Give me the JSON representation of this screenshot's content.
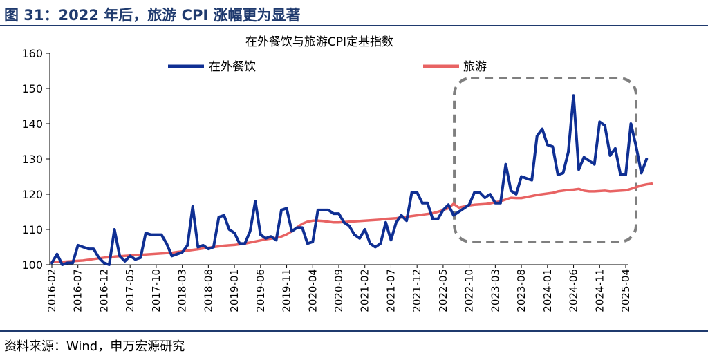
{
  "figure": {
    "title": "图 31：2022 年后，旅游 CPI 涨幅更为显著",
    "source": "资料来源：Wind，申万宏源研究"
  },
  "chart_data": {
    "type": "line",
    "title": "在外餐饮与旅游CPI定基指数",
    "xlabel": "",
    "ylabel": "",
    "ylim": [
      100,
      160
    ],
    "yticks": [
      100,
      110,
      120,
      130,
      140,
      150,
      160
    ],
    "xtick_labels": [
      "2016-02",
      "2016-07",
      "2016-12",
      "2017-05",
      "2017-10",
      "2018-03",
      "2018-08",
      "2019-01",
      "2019-06",
      "2019-11",
      "2020-04",
      "2020-09",
      "2021-02",
      "2021-07",
      "2021-12",
      "2022-05",
      "2022-10",
      "2023-03",
      "2023-08",
      "2024-01",
      "2024-06",
      "2024-11",
      "2025-04"
    ],
    "start_month": "2016-02",
    "end_month": "2025-04",
    "grid": false,
    "legend": "top",
    "highlight_box": {
      "from": "2022-09",
      "to": "2025-04",
      "style": "dashed rounded"
    },
    "series": [
      {
        "name": "在外餐饮",
        "color": "#0f2f93",
        "values": [
          100.5,
          103.0,
          100.0,
          100.5,
          100.5,
          105.5,
          105.0,
          104.5,
          104.5,
          102.0,
          100.5,
          100.0,
          110.0,
          102.5,
          101.0,
          102.5,
          101.5,
          102.0,
          109.0,
          108.5,
          108.5,
          108.5,
          106.0,
          102.5,
          103.0,
          103.5,
          105.5,
          116.5,
          105.0,
          105.5,
          104.5,
          105.0,
          113.5,
          114.0,
          110.0,
          109.0,
          106.0,
          106.0,
          109.5,
          118.0,
          108.5,
          107.5,
          108.0,
          107.0,
          115.5,
          116.0,
          109.5,
          110.5,
          110.5,
          106.0,
          106.5,
          115.5,
          115.5,
          115.5,
          114.5,
          114.5,
          112.0,
          111.0,
          108.5,
          107.5,
          110.0,
          106.0,
          105.0,
          106.0,
          112.0,
          107.0,
          112.0,
          114.0,
          112.5,
          120.5,
          120.5,
          117.5,
          117.5,
          113.0,
          113.0,
          115.5,
          117.0,
          114.0,
          115.0,
          116.0,
          117.0,
          120.5,
          120.5,
          119.0,
          120.0,
          117.5,
          117.5,
          128.5,
          121.0,
          120.0,
          125.0,
          124.5,
          124.0,
          136.5,
          138.5,
          134.0,
          133.5,
          125.5,
          126.0,
          132.0,
          148.0,
          127.0,
          130.5,
          129.5,
          128.5,
          140.5,
          139.5,
          131.0,
          133.0,
          125.5,
          125.5,
          140.0,
          133.5,
          126.0,
          130.0
        ]
      },
      {
        "name": "旅游",
        "color": "#e86363",
        "values": [
          100.8,
          100.8,
          100.8,
          100.9,
          101.0,
          101.1,
          101.2,
          101.4,
          101.6,
          101.8,
          102.0,
          102.1,
          102.3,
          102.4,
          102.5,
          102.6,
          102.7,
          102.8,
          102.9,
          103.0,
          103.1,
          103.2,
          103.3,
          103.4,
          103.6,
          103.8,
          104.0,
          104.2,
          104.4,
          104.6,
          104.8,
          105.0,
          105.2,
          105.4,
          105.5,
          105.6,
          105.8,
          106.0,
          106.3,
          106.6,
          106.9,
          107.2,
          107.4,
          107.6,
          108.0,
          108.6,
          109.5,
          110.6,
          111.6,
          112.2,
          112.5,
          112.5,
          112.4,
          112.2,
          112.0,
          112.0,
          112.1,
          112.2,
          112.3,
          112.4,
          112.5,
          112.6,
          112.7,
          112.8,
          113.0,
          113.1,
          113.2,
          113.4,
          113.6,
          113.8,
          114.0,
          114.2,
          114.4,
          114.6,
          115.0,
          115.5,
          116.0,
          117.3,
          116.2,
          116.5,
          116.8,
          117.0,
          117.1,
          117.2,
          117.4,
          117.7,
          118.0,
          118.5,
          119.0,
          118.9,
          118.9,
          119.2,
          119.5,
          119.8,
          120.0,
          120.2,
          120.4,
          120.8,
          121.0,
          121.2,
          121.3,
          121.5,
          121.0,
          120.8,
          120.8,
          120.9,
          121.0,
          120.8,
          120.9,
          121.0,
          121.1,
          121.5,
          122.0,
          122.5,
          122.8,
          123.0
        ]
      }
    ]
  }
}
